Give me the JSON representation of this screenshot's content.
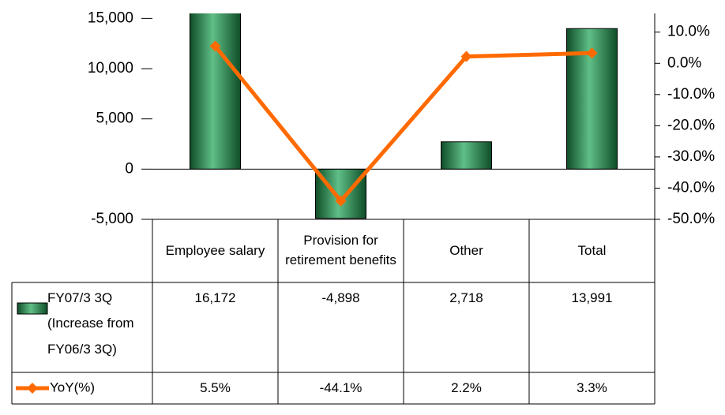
{
  "chart_data": {
    "type": "bar-line",
    "categories": [
      "Employee salary",
      "Provision for retirement benefits",
      "Other",
      "Total"
    ],
    "series": [
      {
        "name": "FY07/3 3Q (Increase from FY06/3 3Q)",
        "type": "bar",
        "color": "#1f7a45",
        "values": [
          16172,
          -4898,
          2718,
          13991
        ],
        "value_labels": [
          "16,172",
          "-4,898",
          "2,718",
          "13,991"
        ]
      },
      {
        "name": "YoY(%)",
        "type": "line",
        "axis": "y2",
        "color": "#ff6a00",
        "values": [
          5.5,
          -44.1,
          2.2,
          3.3
        ],
        "value_labels": [
          "5.5%",
          "-44.1%",
          "2.2%",
          "3.3%"
        ]
      }
    ],
    "ylim": [
      -5000,
      15500
    ],
    "yticks": [
      {
        "value": -5000,
        "label": "-5,000"
      },
      0,
      {
        "value": 5000,
        "label": "5,000"
      },
      {
        "value": 10000,
        "label": "10,000"
      },
      {
        "value": 15000,
        "label": "15,000"
      }
    ],
    "y2lim": [
      -50,
      16
    ],
    "y2ticks": [
      {
        "value": -50,
        "label": "-50.0%"
      },
      {
        "value": -40,
        "label": "-40.0%"
      },
      {
        "value": -30,
        "label": "-30.0%"
      },
      {
        "value": -20,
        "label": "-20.0%"
      },
      {
        "value": -10,
        "label": "-10.0%"
      },
      {
        "value": 0,
        "label": "0.0%"
      },
      {
        "value": 10,
        "label": "10.0%"
      }
    ]
  }
}
